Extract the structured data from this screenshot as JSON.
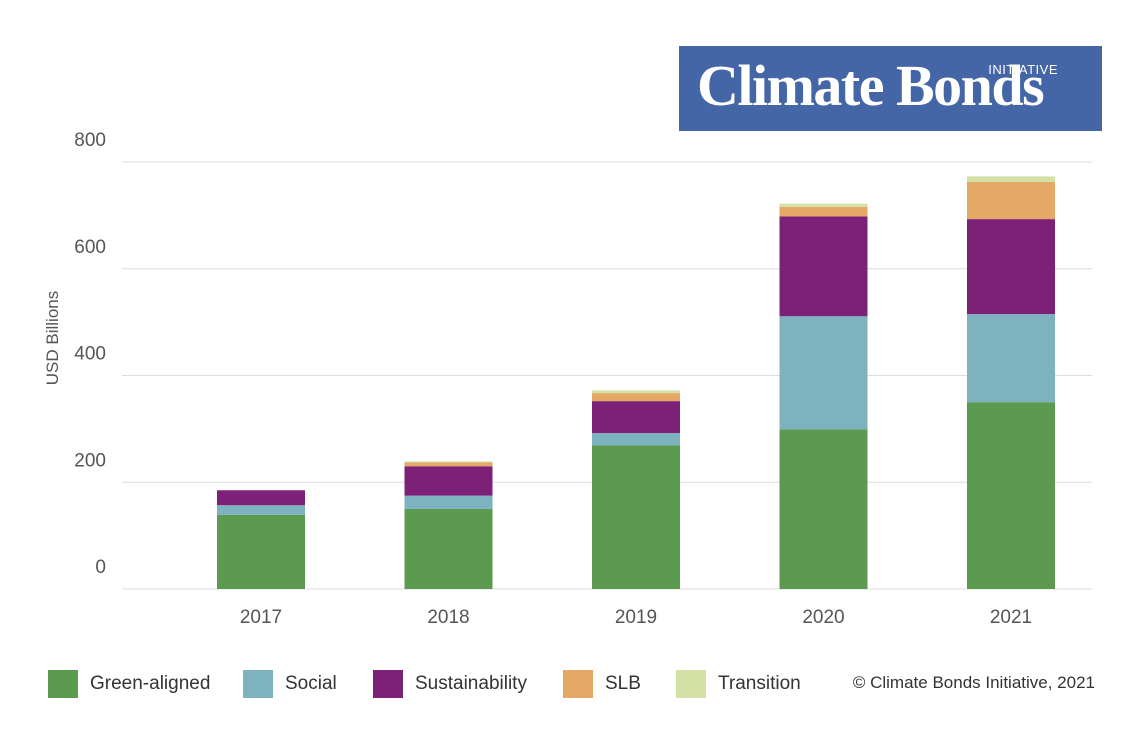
{
  "logo": {
    "prefix": "INITIATIVE",
    "name": "Climate Bonds"
  },
  "copyright": "© Climate Bonds Initiative, 2021",
  "colors": {
    "Green-aligned": "#5b9a4f",
    "Social": "#7db2bf",
    "Sustainability": "#7c2078",
    "SLB": "#e5a966",
    "Transition": "#d3e2a4"
  },
  "chart_data": {
    "type": "bar",
    "stacked": true,
    "ylabel": "USD Billions",
    "xlabel": "",
    "ylim": [
      0,
      800
    ],
    "yticks": [
      0,
      200,
      400,
      600,
      800
    ],
    "grid": true,
    "legend_position": "bottom",
    "categories": [
      "2017",
      "2018",
      "2019",
      "2020",
      "2021"
    ],
    "series": [
      {
        "name": "Green-aligned",
        "values": [
          139,
          150,
          269,
          299,
          350
        ]
      },
      {
        "name": "Social",
        "values": [
          18,
          25,
          23,
          212,
          165
        ]
      },
      {
        "name": "Sustainability",
        "values": [
          28,
          55,
          60,
          187,
          178
        ]
      },
      {
        "name": "SLB",
        "values": [
          0,
          7,
          15,
          18,
          70
        ]
      },
      {
        "name": "Transition",
        "values": [
          0,
          2,
          5,
          6,
          10
        ]
      }
    ]
  }
}
